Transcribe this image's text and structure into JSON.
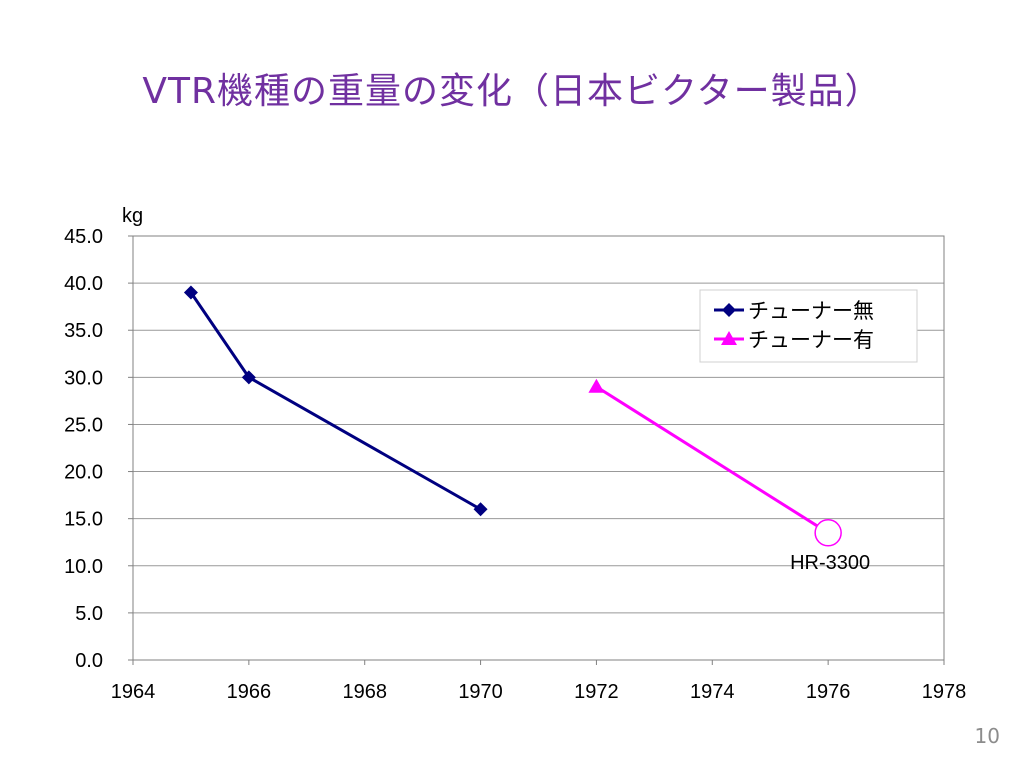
{
  "slide": {
    "title": "VTR機種の重量の変化（日本ビクター製品）",
    "page_number": "10"
  },
  "chart_data": {
    "type": "line",
    "title": "",
    "xlabel": "",
    "ylabel": "kg",
    "xlim": [
      1964,
      1978
    ],
    "ylim": [
      0,
      45
    ],
    "x_ticks": [
      1964,
      1966,
      1968,
      1970,
      1972,
      1974,
      1976,
      1978
    ],
    "y_ticks": [
      0,
      5,
      10,
      15,
      20,
      25,
      30,
      35,
      40,
      45
    ],
    "x_tick_labels": [
      "1964",
      "1966",
      "1968",
      "1970",
      "1972",
      "1974",
      "1976",
      "1978"
    ],
    "y_tick_labels": [
      "0.0",
      "5.0",
      "10.0",
      "15.0",
      "20.0",
      "25.0",
      "30.0",
      "35.0",
      "40.0",
      "45.0"
    ],
    "grid": "horizontal",
    "legend_position": "top-right",
    "series": [
      {
        "name": "チューナー無",
        "color": "#000080",
        "marker": "diamond",
        "x": [
          1965,
          1966,
          1970
        ],
        "y": [
          39,
          30,
          16
        ]
      },
      {
        "name": "チューナー有",
        "color": "#ff00ff",
        "marker": "triangle",
        "x": [
          1972,
          1976
        ],
        "y": [
          29,
          13.5
        ]
      }
    ],
    "annotations": [
      {
        "text": "HR-3300",
        "x": 1976,
        "y": 13.5,
        "marker": "circle"
      }
    ]
  }
}
